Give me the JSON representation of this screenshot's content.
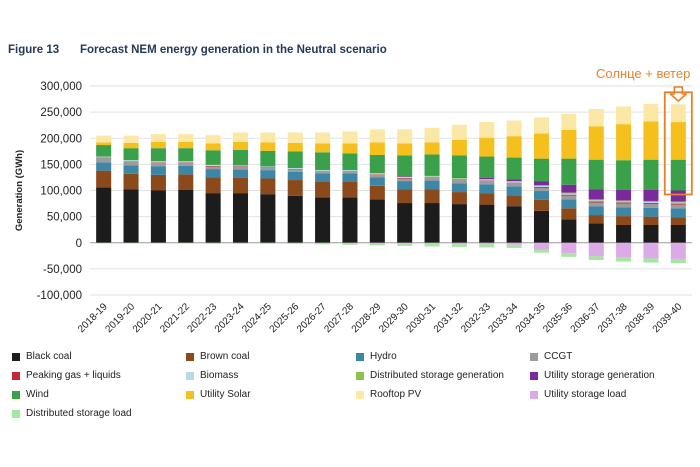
{
  "figure": {
    "number": "Figure 13",
    "title": "Forecast NEM energy generation in the Neutral scenario"
  },
  "annotation": {
    "text": "Солнце + ветер",
    "color": "#e8822a",
    "target_category": "2039-40"
  },
  "colors": {
    "Black coal": "#1c1c1c",
    "Brown coal": "#8a4a1c",
    "Hydro": "#3e86a6",
    "CCGT": "#9c9c9c",
    "Peaking gas + liquids": "#c8283c",
    "Biomass": "#b6dbe6",
    "Distributed storage generation": "#8cc34e",
    "Utility storage generation": "#7a2a9a",
    "Wind": "#3aa04a",
    "Utility Solar": "#f5c01e",
    "Rooftop PV": "#fbe8a6",
    "Utility storage load": "#dcaae6",
    "Distributed storage load": "#a6e6a0"
  },
  "chart_data": {
    "type": "bar",
    "stacked": true,
    "title": "",
    "xlabel": "",
    "ylabel": "Generation (GWh)",
    "ylim": [
      -100000,
      300000
    ],
    "yticks": [
      -100000,
      -50000,
      0,
      50000,
      100000,
      150000,
      200000,
      250000,
      300000
    ],
    "ytick_labels": [
      "-100,000",
      "-50,000",
      "0",
      "50,000",
      "100,000",
      "150,000",
      "200,000",
      "250,000",
      "300,000"
    ],
    "grid": true,
    "legend_position": "bottom",
    "categories": [
      "2018-19",
      "2019-20",
      "2020-21",
      "2021-22",
      "2022-23",
      "2023-24",
      "2024-25",
      "2025-26",
      "2026-27",
      "2027-28",
      "2028-29",
      "2029-30",
      "2030-31",
      "2031-32",
      "2032-33",
      "2033-34",
      "2034-35",
      "2035-36",
      "2036-37",
      "2037-38",
      "2038-39",
      "2039-40"
    ],
    "series": [
      {
        "name": "Black coal",
        "values": [
          106000,
          102000,
          100000,
          101000,
          95000,
          95000,
          93000,
          90000,
          87000,
          87000,
          83000,
          76000,
          76000,
          74000,
          73000,
          70000,
          61000,
          45000,
          37000,
          34000,
          34000,
          34000
        ]
      },
      {
        "name": "Brown coal",
        "values": [
          32000,
          30000,
          30000,
          30000,
          30000,
          29000,
          30000,
          30000,
          30000,
          30000,
          26000,
          26000,
          26000,
          23000,
          22000,
          21000,
          21000,
          21000,
          16000,
          17000,
          16000,
          15000
        ]
      },
      {
        "name": "Hydro",
        "values": [
          16000,
          16000,
          16000,
          16000,
          16000,
          16000,
          16000,
          16000,
          16000,
          16000,
          16000,
          16000,
          17000,
          17000,
          17000,
          17000,
          17000,
          17000,
          17000,
          17000,
          17000,
          17000
        ]
      },
      {
        "name": "CCGT",
        "values": [
          8000,
          7000,
          7000,
          6000,
          5000,
          5000,
          4000,
          4000,
          3000,
          3000,
          5000,
          5000,
          5000,
          6000,
          6000,
          6000,
          6000,
          7000,
          7000,
          7000,
          7000,
          7000
        ]
      },
      {
        "name": "Peaking gas + liquids",
        "values": [
          1000,
          1000,
          1000,
          1000,
          1000,
          1000,
          1000,
          1000,
          1000,
          1000,
          1000,
          1000,
          1000,
          1000,
          1000,
          1000,
          2000,
          2000,
          2000,
          2000,
          2000,
          2000
        ]
      },
      {
        "name": "Biomass",
        "values": [
          2000,
          2000,
          2000,
          2000,
          2000,
          2000,
          2000,
          2000,
          2000,
          2000,
          2000,
          2000,
          2000,
          2000,
          2000,
          2000,
          2000,
          2000,
          2000,
          2000,
          2000,
          2000
        ]
      },
      {
        "name": "Distributed storage generation",
        "values": [
          0,
          0,
          0,
          0,
          0,
          0,
          0,
          0,
          0,
          0,
          0,
          0,
          1000,
          1000,
          1000,
          1000,
          1000,
          2000,
          2000,
          2000,
          2000,
          2000
        ]
      },
      {
        "name": "Utility storage generation",
        "values": [
          0,
          0,
          0,
          0,
          0,
          0,
          0,
          0,
          0,
          0,
          0,
          1000,
          1000,
          1000,
          2000,
          3000,
          8000,
          15000,
          19000,
          20000,
          21000,
          21000
        ]
      },
      {
        "name": "Wind",
        "values": [
          22000,
          23000,
          25000,
          25000,
          28000,
          30000,
          30000,
          32000,
          34000,
          32000,
          35000,
          40000,
          40000,
          42000,
          41000,
          42000,
          43000,
          50000,
          57000,
          57000,
          58000,
          59000
        ]
      },
      {
        "name": "Utility Solar",
        "values": [
          5000,
          10000,
          12000,
          12000,
          13000,
          15000,
          16000,
          16000,
          17000,
          19000,
          24000,
          23000,
          23000,
          30000,
          36000,
          41000,
          48000,
          55000,
          64000,
          69000,
          73000,
          72000
        ]
      },
      {
        "name": "Rooftop PV",
        "values": [
          13000,
          14000,
          15000,
          15000,
          16000,
          18000,
          19000,
          20000,
          21000,
          23000,
          25000,
          27000,
          28000,
          29000,
          30000,
          30000,
          31000,
          31000,
          33000,
          34000,
          34000,
          34000
        ]
      },
      {
        "name": "Utility storage load",
        "values": [
          0,
          0,
          0,
          0,
          0,
          0,
          0,
          0,
          0,
          -1000,
          -1000,
          -2000,
          -2000,
          -3000,
          -3000,
          -4000,
          -13000,
          -20000,
          -26000,
          -28000,
          -30000,
          -31000
        ]
      },
      {
        "name": "Distributed storage load",
        "values": [
          -1000,
          -1000,
          -1000,
          -1000,
          -2000,
          -2000,
          -2000,
          -2000,
          -3000,
          -3000,
          -4000,
          -4000,
          -5000,
          -5000,
          -6000,
          -6000,
          -6000,
          -7000,
          -7000,
          -8000,
          -8000,
          -8000
        ]
      }
    ]
  }
}
